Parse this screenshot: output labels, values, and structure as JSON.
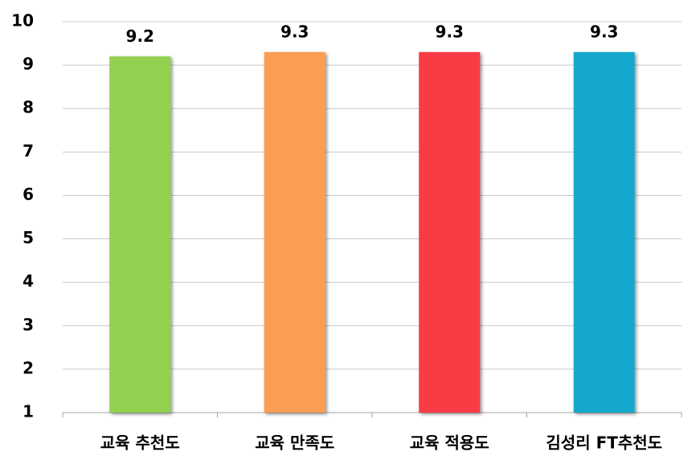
{
  "chart_data": {
    "type": "bar",
    "categories": [
      "교육 추천도",
      "교육 만족도",
      "교육 적용도",
      "김성리 FT추천도"
    ],
    "values": [
      9.2,
      9.3,
      9.3,
      9.3
    ],
    "colors": [
      "#92d050",
      "#fb9d52",
      "#f93b45",
      "#17a8cc"
    ],
    "ylim": [
      1,
      10
    ],
    "yticks": [
      1,
      2,
      3,
      4,
      5,
      6,
      7,
      8,
      9,
      10
    ],
    "grid": true
  }
}
